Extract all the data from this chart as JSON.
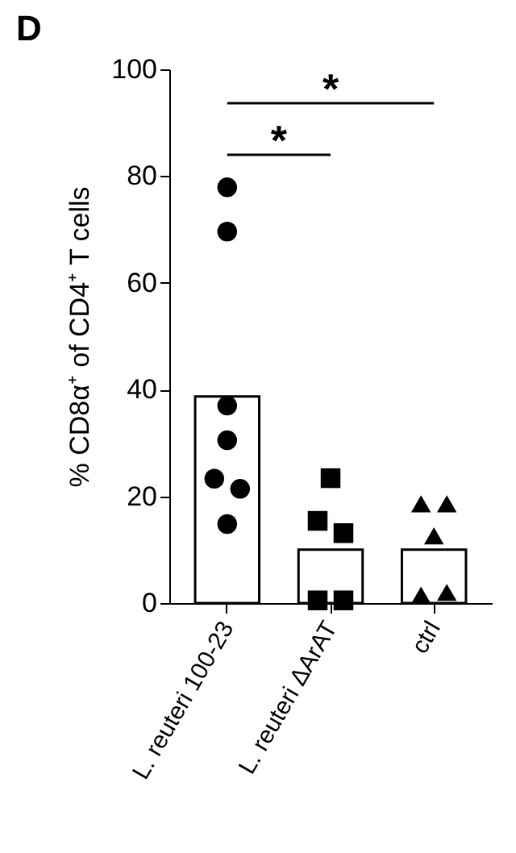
{
  "chart_data": {
    "type": "bar",
    "ylabel": "% CD8α⁺ of CD4⁺ T cells",
    "categories": [
      "L. reuteri 100-23",
      "L. reuteri ΔArAT",
      "ctrl"
    ],
    "ylim": [
      0,
      100
    ],
    "yticks": [
      0,
      20,
      40,
      60,
      80,
      100
    ],
    "grid": false,
    "series": [
      {
        "type": "bar",
        "color": "#ffffff",
        "values": [
          38.7,
          10,
          10
        ]
      },
      {
        "type": "scatter",
        "marker": "circle",
        "color": "#000000",
        "x": [
          "L. reuteri 100-23",
          "L. reuteri 100-23",
          "L. reuteri 100-23",
          "L. reuteri 100-23",
          "L. reuteri 100-23",
          "L. reuteri 100-23",
          "L. reuteri 100-23"
        ],
        "values": [
          77.9,
          69.6,
          37,
          30.5,
          23.3,
          21.4,
          14.8
        ]
      },
      {
        "type": "scatter",
        "marker": "square",
        "color": "#000000",
        "x": [
          "L. reuteri ΔArAT",
          "L. reuteri ΔArAT",
          "L. reuteri ΔArAT",
          "L. reuteri ΔArAT",
          "L. reuteri ΔArAT"
        ],
        "values": [
          23.4,
          15.4,
          13.1,
          0.5,
          0.5
        ]
      },
      {
        "type": "scatter",
        "marker": "triangle",
        "color": "#000000",
        "x": [
          "ctrl",
          "ctrl",
          "ctrl",
          "ctrl",
          "ctrl"
        ],
        "values": [
          18.6,
          18.6,
          12.6,
          1.5,
          2
        ]
      }
    ],
    "annotations": [
      "D",
      "*",
      "*"
    ]
  }
}
